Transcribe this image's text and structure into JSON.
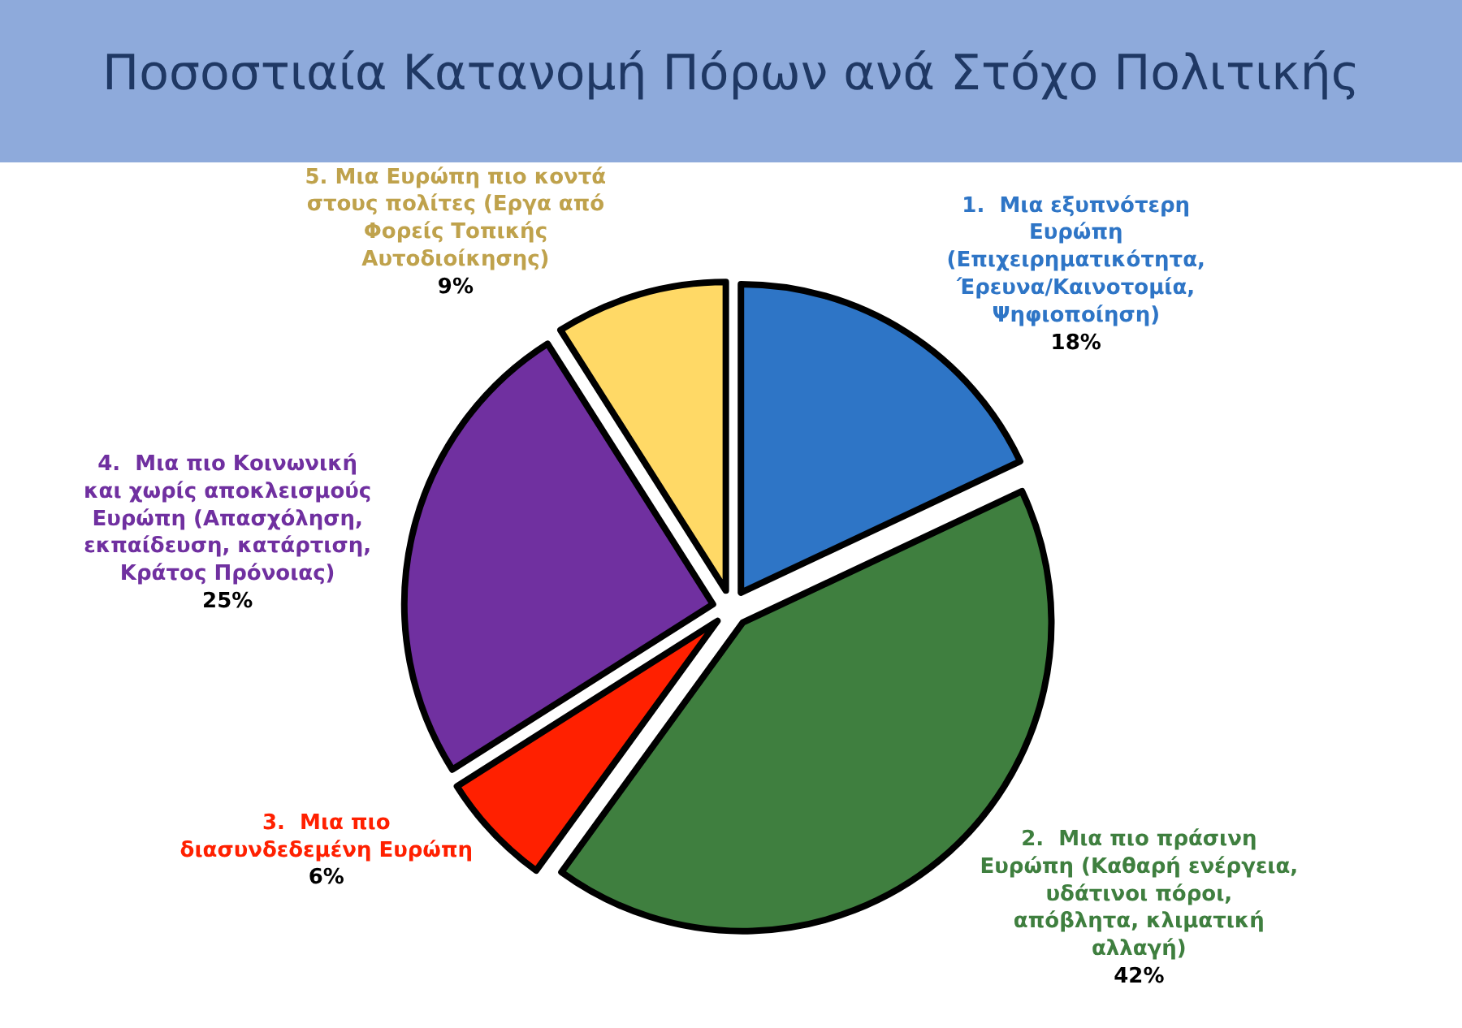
{
  "chart_data": {
    "type": "pie",
    "title": "Ποσοστιαία Κατανομή Πόρων ανά Στόχο Πολιτικής",
    "categories": [
      "1.  Μια εξυπνότερη Ευρώπη (Επιχειρηματικότητα, Έρευνα/Καινοτομία, Ψηφιοποίηση)",
      "2.  Μια πιο πράσινη Ευρώπη (Καθαρή ενέργεια, υδάτινοι πόροι, απόβλητα, κλιματική αλλαγή)",
      "3.  Μια πιο διασυνδεδεμένη Ευρώπη",
      "4.  Μια πιο Κοινωνική και χωρίς αποκλεισμούς Ευρώπη (Απασχόληση, εκπαίδευση, κατάρτιση, Κράτος Πρόνοιας)",
      "5. Μια Ευρώπη πιο κοντά στους πολίτες (Εργα από Φορείς Τοπικής Αυτοδιοίκησης)"
    ],
    "values": [
      18,
      42,
      6,
      25,
      9
    ],
    "value_labels": [
      "18%",
      "42%",
      "6%",
      "25%",
      "9%"
    ],
    "colors": [
      "#2e75c6",
      "#3f7f3f",
      "#ff2000",
      "#7030a0",
      "#ffd966"
    ]
  }
}
